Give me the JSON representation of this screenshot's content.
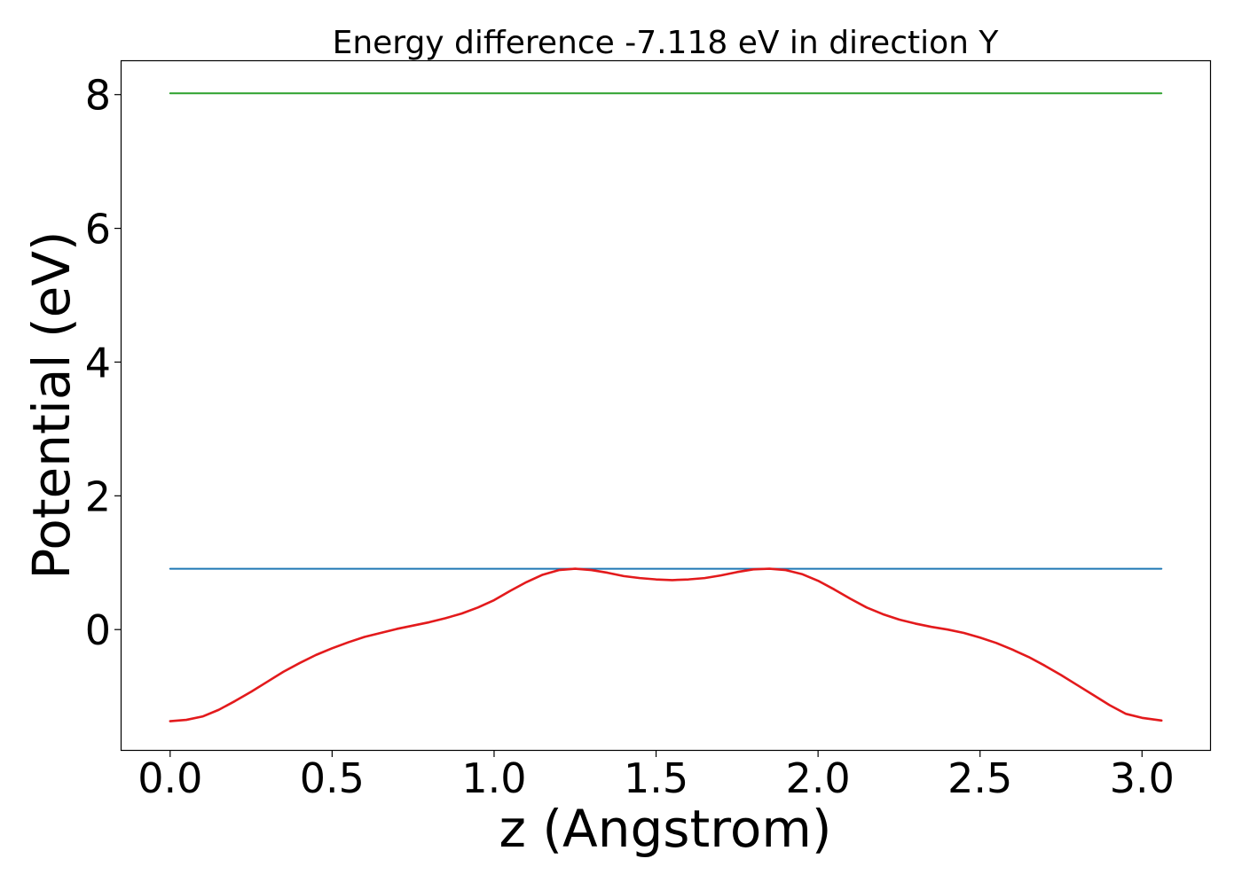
{
  "chart_data": {
    "type": "line",
    "title": "Energy difference -7.118 eV in direction Y",
    "xlabel": "z (Angstrom)",
    "ylabel": "Potential (eV)",
    "xlim": [
      -0.15,
      3.21
    ],
    "ylim": [
      -1.8,
      8.5
    ],
    "xticks": [
      0.0,
      0.5,
      1.0,
      1.5,
      2.0,
      2.5,
      3.0
    ],
    "xtick_labels": [
      "0.0",
      "0.5",
      "1.0",
      "1.5",
      "2.0",
      "2.5",
      "3.0"
    ],
    "yticks": [
      0,
      2,
      4,
      6,
      8
    ],
    "ytick_labels": [
      "0",
      "2",
      "4",
      "6",
      "8"
    ],
    "grid": false,
    "legend": "none",
    "series": [
      {
        "color": "#2ca02c",
        "x": [
          0.0,
          3.06
        ],
        "y": [
          8.02,
          8.02
        ]
      },
      {
        "color": "#1f77b4",
        "x": [
          0.0,
          3.06
        ],
        "y": [
          0.91,
          0.91
        ]
      },
      {
        "color": "#e31a1c",
        "x": [
          0.0,
          0.05,
          0.1,
          0.15,
          0.2,
          0.25,
          0.3,
          0.35,
          0.4,
          0.45,
          0.5,
          0.55,
          0.6,
          0.65,
          0.7,
          0.75,
          0.8,
          0.85,
          0.9,
          0.95,
          1.0,
          1.05,
          1.1,
          1.15,
          1.2,
          1.25,
          1.3,
          1.35,
          1.4,
          1.45,
          1.5,
          1.55,
          1.6,
          1.65,
          1.7,
          1.75,
          1.8,
          1.85,
          1.9,
          1.95,
          2.0,
          2.05,
          2.1,
          2.15,
          2.2,
          2.25,
          2.3,
          2.35,
          2.4,
          2.45,
          2.5,
          2.55,
          2.6,
          2.65,
          2.7,
          2.75,
          2.8,
          2.85,
          2.9,
          2.95,
          3.0,
          3.06
        ],
        "y": [
          -1.37,
          -1.35,
          -1.3,
          -1.2,
          -1.07,
          -0.93,
          -0.78,
          -0.63,
          -0.5,
          -0.38,
          -0.28,
          -0.19,
          -0.11,
          -0.05,
          0.01,
          0.06,
          0.11,
          0.17,
          0.24,
          0.33,
          0.44,
          0.58,
          0.71,
          0.82,
          0.89,
          0.91,
          0.89,
          0.85,
          0.8,
          0.77,
          0.75,
          0.74,
          0.75,
          0.77,
          0.81,
          0.86,
          0.9,
          0.91,
          0.89,
          0.83,
          0.73,
          0.6,
          0.46,
          0.33,
          0.23,
          0.15,
          0.09,
          0.04,
          0.0,
          -0.05,
          -0.12,
          -0.2,
          -0.3,
          -0.41,
          -0.54,
          -0.68,
          -0.83,
          -0.98,
          -1.13,
          -1.26,
          -1.32,
          -1.36
        ]
      }
    ]
  }
}
